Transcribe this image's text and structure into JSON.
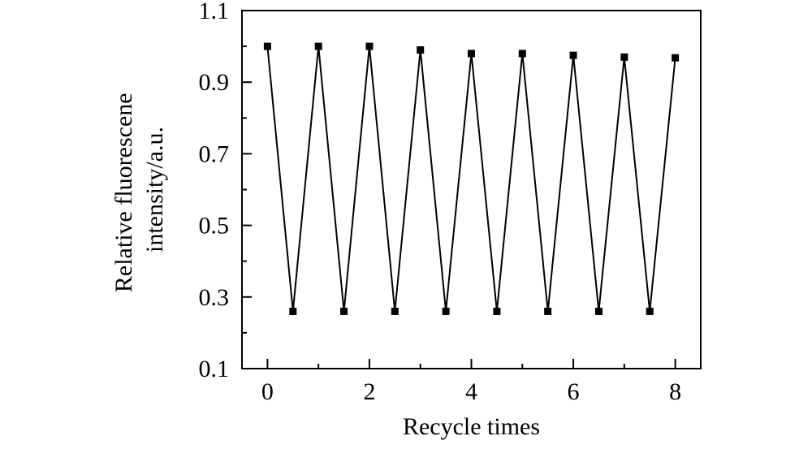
{
  "chart_data": {
    "type": "line",
    "title": "",
    "xlabel": "Recycle times",
    "ylabel_lines": [
      "Relative fluorescene",
      "intensity/a.u."
    ],
    "xlim": [
      -0.5,
      8.5
    ],
    "ylim": [
      0.1,
      1.1
    ],
    "x_ticks": [
      0,
      2,
      4,
      6,
      8
    ],
    "x_tick_labels": [
      "0",
      "2",
      "4",
      "6",
      "8"
    ],
    "x_minor_ticks": [
      1,
      3,
      5,
      7
    ],
    "y_ticks": [
      0.1,
      0.3,
      0.5,
      0.7,
      0.9,
      1.1
    ],
    "y_tick_labels": [
      "0.1",
      "0.3",
      "0.5",
      "0.7",
      "0.9",
      "1.1"
    ],
    "y_minor_ticks": [
      0.2,
      0.4,
      0.6,
      0.8,
      1.0
    ],
    "grid": false,
    "legend": "none",
    "series": [
      {
        "marker": "square",
        "color": "#000000",
        "x": [
          0,
          0.5,
          1,
          1.5,
          2,
          2.5,
          3,
          3.5,
          4,
          4.5,
          5,
          5.5,
          6,
          6.5,
          7,
          7.5,
          8
        ],
        "y": [
          1.0,
          0.26,
          1.0,
          0.26,
          1.0,
          0.26,
          0.99,
          0.26,
          0.98,
          0.26,
          0.98,
          0.26,
          0.975,
          0.26,
          0.97,
          0.26,
          0.968
        ]
      }
    ]
  }
}
